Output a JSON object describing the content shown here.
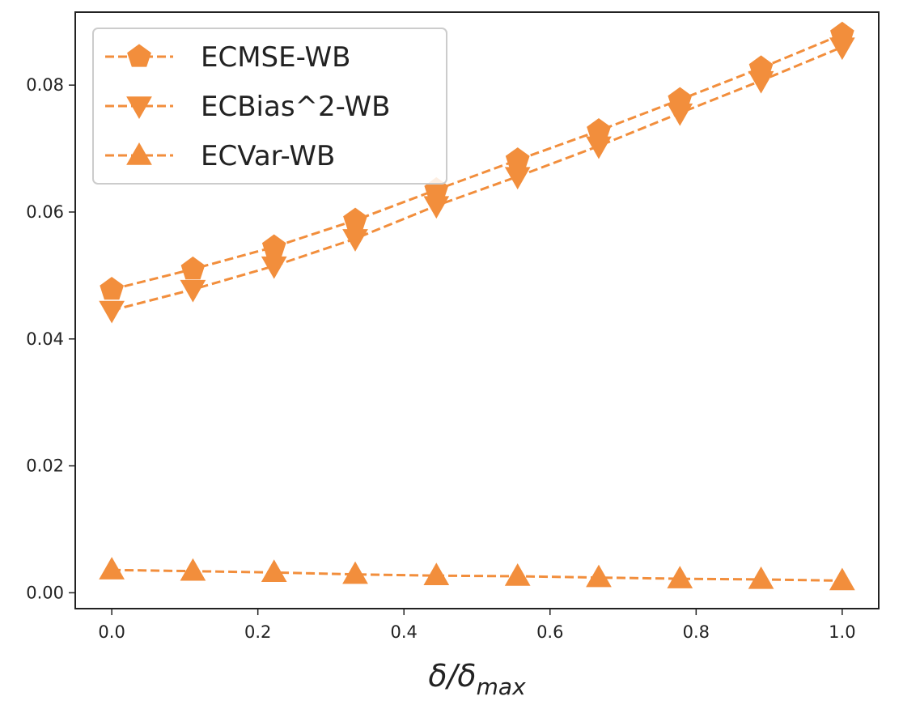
{
  "chart_data": {
    "type": "line",
    "title": "",
    "xlabel": "δ/δ",
    "xlabel_sub": "max",
    "ylabel": "",
    "xlim": [
      -0.05,
      1.05
    ],
    "ylim": [
      -0.0025,
      0.0915
    ],
    "x": [
      0.0,
      0.1111,
      0.2222,
      0.3333,
      0.4444,
      0.5556,
      0.6667,
      0.7778,
      0.8889,
      1.0
    ],
    "x_ticks": [
      0.0,
      0.2,
      0.4,
      0.6,
      0.8,
      1.0
    ],
    "x_tick_labels": [
      "0.0",
      "0.2",
      "0.4",
      "0.6",
      "0.8",
      "1.0"
    ],
    "y_ticks": [
      0.0,
      0.02,
      0.04,
      0.06,
      0.08
    ],
    "y_tick_labels": [
      "0.00",
      "0.02",
      "0.04",
      "0.06",
      "0.08"
    ],
    "grid": false,
    "legend_position": "top-left",
    "series": [
      {
        "name": "ECMSE-WB",
        "marker": "pentagon",
        "color": "#f28e3c",
        "linestyle": "dashed",
        "values": [
          0.0478,
          0.051,
          0.0545,
          0.0587,
          0.0635,
          0.0682,
          0.0728,
          0.0777,
          0.0827,
          0.088
        ]
      },
      {
        "name": "ECBias^2-WB",
        "marker": "triangle-down",
        "color": "#f28e3c",
        "linestyle": "dashed",
        "values": [
          0.0445,
          0.0478,
          0.0515,
          0.0558,
          0.061,
          0.0656,
          0.0704,
          0.0756,
          0.0807,
          0.086
        ]
      },
      {
        "name": "ECVar-WB",
        "marker": "triangle-up",
        "color": "#f28e3c",
        "linestyle": "dashed",
        "values": [
          0.0036,
          0.0034,
          0.0032,
          0.0029,
          0.0027,
          0.0026,
          0.0024,
          0.0022,
          0.0021,
          0.0019
        ]
      }
    ]
  }
}
